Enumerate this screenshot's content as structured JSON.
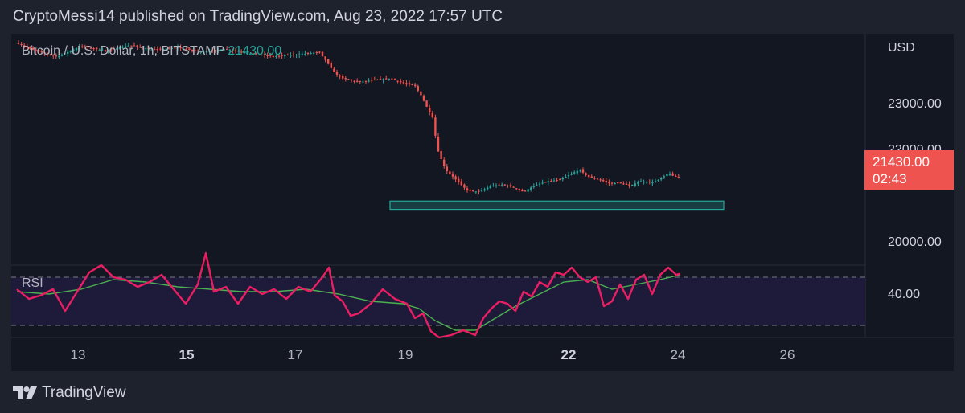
{
  "header": {
    "published_line": "CryptoMessi14 published on TradingView.com, Aug 23, 2022 17:57 UTC"
  },
  "footer": {
    "brand": "TradingView",
    "logo_icon": "tradingview-logo-icon"
  },
  "colors": {
    "background": "#131722",
    "frame": "#1e222d",
    "up": "#26a69a",
    "down": "#ef5350",
    "rsi_line": "#e91e63",
    "rsi_ma": "#4caf50",
    "rsi_band": "#1e1b3a",
    "support_zone": "#26a69a"
  },
  "chart_data": {
    "type": "candlestick",
    "symbol": "Bitcoin / U.S. Dollar, 1h, BITSTAMP",
    "last_price_label": "21430.00",
    "last_price": 21430,
    "countdown": "02:43",
    "currency": "USD",
    "y_ticks": [
      "23000.00",
      "22000.00",
      "20000.00"
    ],
    "y_tick_values": [
      23000,
      22000,
      20000
    ],
    "ylim": [
      19530,
      24550
    ],
    "x_ticks": [
      {
        "label": "13",
        "bold": false
      },
      {
        "label": "15",
        "bold": true
      },
      {
        "label": "17",
        "bold": false
      },
      {
        "label": "19",
        "bold": false
      },
      {
        "label": "22",
        "bold": true
      },
      {
        "label": "24",
        "bold": false
      },
      {
        "label": "26",
        "bold": false
      }
    ],
    "price_path": [
      [
        0,
        24350
      ],
      [
        20,
        24200
      ],
      [
        50,
        24050
      ],
      [
        80,
        24280
      ],
      [
        110,
        24180
      ],
      [
        140,
        24300
      ],
      [
        170,
        24200
      ],
      [
        200,
        24250
      ],
      [
        230,
        24150
      ],
      [
        260,
        24220
      ],
      [
        290,
        24120
      ],
      [
        320,
        24060
      ],
      [
        350,
        24100
      ],
      [
        376,
        24150
      ],
      [
        385,
        23950
      ],
      [
        395,
        23700
      ],
      [
        405,
        23580
      ],
      [
        425,
        23500
      ],
      [
        445,
        23550
      ],
      [
        465,
        23580
      ],
      [
        480,
        23480
      ],
      [
        495,
        23420
      ],
      [
        503,
        23200
      ],
      [
        512,
        22880
      ],
      [
        518,
        22700
      ],
      [
        522,
        22100
      ],
      [
        526,
        21900
      ],
      [
        533,
        21600
      ],
      [
        545,
        21400
      ],
      [
        560,
        21150
      ],
      [
        575,
        21120
      ],
      [
        590,
        21250
      ],
      [
        605,
        21280
      ],
      [
        620,
        21200
      ],
      [
        630,
        21120
      ],
      [
        645,
        21270
      ],
      [
        660,
        21350
      ],
      [
        675,
        21380
      ],
      [
        690,
        21520
      ],
      [
        700,
        21600
      ],
      [
        710,
        21450
      ],
      [
        725,
        21380
      ],
      [
        738,
        21300
      ],
      [
        750,
        21320
      ],
      [
        762,
        21250
      ],
      [
        775,
        21350
      ],
      [
        790,
        21320
      ],
      [
        800,
        21400
      ],
      [
        810,
        21520
      ],
      [
        818,
        21450
      ],
      [
        825,
        21430
      ]
    ],
    "support_zone": {
      "x_start": 471,
      "x_end": 886,
      "price_low": 20740,
      "price_high": 20920
    },
    "rsi": {
      "label": "RSI",
      "y_tick": "40.00",
      "band": [
        30,
        70
      ],
      "ylim": [
        20,
        80
      ],
      "values": [
        [
          0,
          60
        ],
        [
          15,
          52
        ],
        [
          30,
          55
        ],
        [
          45,
          60
        ],
        [
          60,
          42
        ],
        [
          75,
          58
        ],
        [
          90,
          74
        ],
        [
          105,
          80
        ],
        [
          120,
          70
        ],
        [
          135,
          68
        ],
        [
          150,
          62
        ],
        [
          165,
          66
        ],
        [
          180,
          72
        ],
        [
          195,
          60
        ],
        [
          210,
          48
        ],
        [
          225,
          64
        ],
        [
          235,
          90
        ],
        [
          245,
          58
        ],
        [
          260,
          62
        ],
        [
          275,
          48
        ],
        [
          290,
          62
        ],
        [
          305,
          56
        ],
        [
          320,
          60
        ],
        [
          335,
          52
        ],
        [
          350,
          62
        ],
        [
          365,
          58
        ],
        [
          380,
          70
        ],
        [
          388,
          78
        ],
        [
          395,
          55
        ],
        [
          405,
          50
        ],
        [
          415,
          38
        ],
        [
          425,
          40
        ],
        [
          440,
          48
        ],
        [
          455,
          60
        ],
        [
          470,
          52
        ],
        [
          485,
          48
        ],
        [
          495,
          36
        ],
        [
          505,
          40
        ],
        [
          515,
          25
        ],
        [
          525,
          20
        ],
        [
          540,
          22
        ],
        [
          555,
          26
        ],
        [
          570,
          22
        ],
        [
          580,
          36
        ],
        [
          590,
          44
        ],
        [
          600,
          50
        ],
        [
          610,
          48
        ],
        [
          620,
          42
        ],
        [
          630,
          58
        ],
        [
          640,
          54
        ],
        [
          650,
          66
        ],
        [
          660,
          62
        ],
        [
          670,
          74
        ],
        [
          680,
          72
        ],
        [
          690,
          78
        ],
        [
          700,
          70
        ],
        [
          710,
          66
        ],
        [
          720,
          70
        ],
        [
          730,
          46
        ],
        [
          740,
          50
        ],
        [
          750,
          64
        ],
        [
          760,
          52
        ],
        [
          770,
          68
        ],
        [
          780,
          72
        ],
        [
          790,
          56
        ],
        [
          800,
          72
        ],
        [
          810,
          78
        ],
        [
          820,
          72
        ],
        [
          825,
          73
        ]
      ],
      "ma_values": [
        [
          0,
          58
        ],
        [
          40,
          56
        ],
        [
          80,
          60
        ],
        [
          120,
          68
        ],
        [
          160,
          66
        ],
        [
          200,
          62
        ],
        [
          240,
          60
        ],
        [
          280,
          58
        ],
        [
          320,
          58
        ],
        [
          360,
          60
        ],
        [
          400,
          56
        ],
        [
          440,
          50
        ],
        [
          480,
          48
        ],
        [
          500,
          44
        ],
        [
          520,
          34
        ],
        [
          545,
          26
        ],
        [
          570,
          26
        ],
        [
          595,
          36
        ],
        [
          620,
          46
        ],
        [
          650,
          56
        ],
        [
          680,
          66
        ],
        [
          710,
          68
        ],
        [
          740,
          60
        ],
        [
          770,
          64
        ],
        [
          800,
          68
        ],
        [
          825,
          72
        ]
      ]
    }
  }
}
